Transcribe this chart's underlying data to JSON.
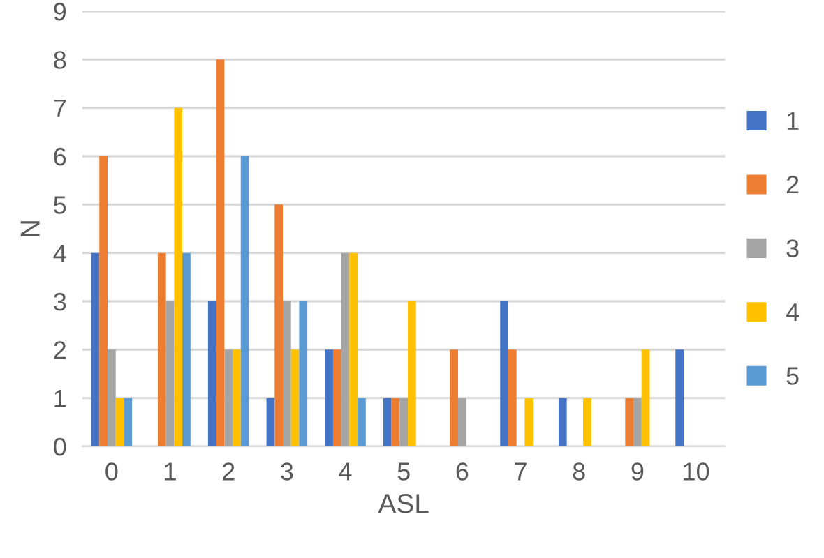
{
  "chart_data": {
    "type": "bar",
    "xlabel": "ASL",
    "ylabel": "N",
    "categories": [
      "0",
      "1",
      "2",
      "3",
      "4",
      "5",
      "6",
      "7",
      "8",
      "9",
      "10"
    ],
    "series": [
      {
        "name": "1",
        "color": "#4472c4",
        "values": [
          4,
          0,
          3,
          1,
          2,
          1,
          0,
          3,
          1,
          0,
          2
        ]
      },
      {
        "name": "2",
        "color": "#ed7d31",
        "values": [
          6,
          4,
          8,
          5,
          2,
          1,
          2,
          2,
          0,
          1,
          0
        ]
      },
      {
        "name": "3",
        "color": "#a5a5a5",
        "values": [
          2,
          3,
          2,
          3,
          4,
          1,
          1,
          0,
          0,
          1,
          0
        ]
      },
      {
        "name": "4",
        "color": "#ffc000",
        "values": [
          1,
          7,
          2,
          2,
          4,
          3,
          0,
          1,
          1,
          2,
          0
        ]
      },
      {
        "name": "5",
        "color": "#5b9bd5",
        "values": [
          1,
          4,
          6,
          3,
          1,
          0,
          0,
          0,
          0,
          0,
          0
        ]
      }
    ],
    "ylim": [
      0,
      9
    ],
    "yticks": [
      0,
      1,
      2,
      3,
      4,
      5,
      6,
      7,
      8,
      9
    ],
    "grid": "y",
    "legend": "right"
  }
}
